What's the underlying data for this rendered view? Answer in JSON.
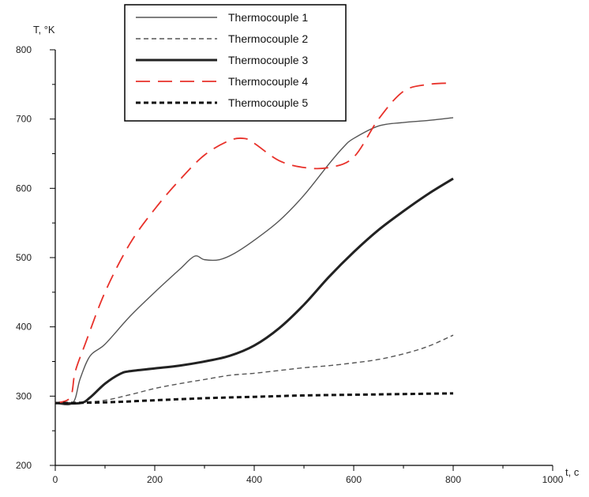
{
  "chart_data": {
    "type": "line",
    "title": "",
    "xlabel": "t, c",
    "ylabel": "T, °K",
    "xlim": [
      0,
      1000
    ],
    "ylim": [
      200,
      800
    ],
    "x_ticks": [
      0,
      200,
      400,
      600,
      800,
      1000
    ],
    "y_ticks": [
      200,
      300,
      400,
      500,
      600,
      700,
      800
    ],
    "grid": false,
    "legend_position": "top-center",
    "series": [
      {
        "name": "Thermocouple 1",
        "color": "#555555",
        "dash": "solid",
        "weight": "thin",
        "x": [
          0,
          35,
          50,
          70,
          100,
          150,
          200,
          250,
          280,
          300,
          330,
          360,
          400,
          450,
          500,
          550,
          580,
          600,
          650,
          700,
          750,
          800
        ],
        "y": [
          290,
          290,
          325,
          358,
          375,
          415,
          450,
          483,
          502,
          497,
          497,
          506,
          525,
          553,
          590,
          635,
          660,
          672,
          690,
          695,
          698,
          702
        ]
      },
      {
        "name": "Thermocouple 2",
        "color": "#555555",
        "dash": "short",
        "weight": "thin",
        "x": [
          0,
          50,
          100,
          150,
          200,
          250,
          300,
          350,
          400,
          450,
          500,
          550,
          600,
          650,
          700,
          750,
          800
        ],
        "y": [
          290,
          291,
          294,
          302,
          311,
          318,
          324,
          330,
          333,
          337,
          341,
          344,
          348,
          353,
          361,
          372,
          388
        ]
      },
      {
        "name": "Thermocouple 3",
        "color": "#222222",
        "dash": "solid",
        "weight": "thick",
        "x": [
          0,
          50,
          70,
          100,
          130,
          150,
          200,
          250,
          300,
          350,
          400,
          450,
          500,
          550,
          600,
          650,
          700,
          750,
          800
        ],
        "y": [
          290,
          290,
          298,
          318,
          332,
          336,
          340,
          344,
          350,
          358,
          373,
          398,
          432,
          472,
          508,
          540,
          567,
          592,
          614
        ]
      },
      {
        "name": "Thermocouple 4",
        "color": "#e8312a",
        "dash": "long",
        "weight": "medium",
        "x": [
          0,
          30,
          40,
          60,
          100,
          150,
          200,
          250,
          300,
          350,
          380,
          400,
          450,
          500,
          550,
          600,
          650,
          700,
          750,
          800
        ],
        "y": [
          290,
          298,
          335,
          375,
          450,
          520,
          570,
          612,
          648,
          669,
          672,
          665,
          640,
          630,
          630,
          645,
          700,
          740,
          750,
          752
        ]
      },
      {
        "name": "Thermocouple 5",
        "color": "#111111",
        "dash": "short",
        "weight": "thick",
        "x": [
          0,
          100,
          200,
          300,
          400,
          500,
          600,
          700,
          800
        ],
        "y": [
          290,
          291,
          294,
          297,
          299,
          301,
          302,
          303,
          304
        ]
      }
    ]
  }
}
